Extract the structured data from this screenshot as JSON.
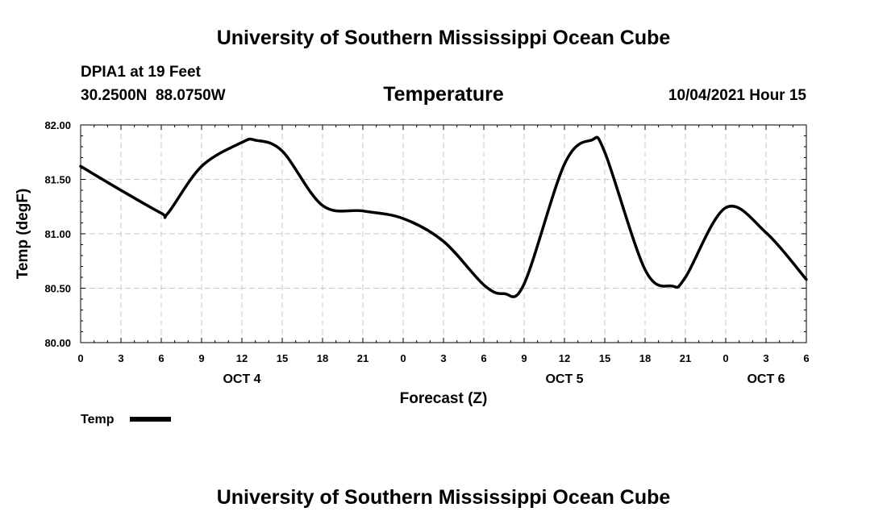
{
  "header": {
    "title": "University of Southern Mississippi Ocean Cube",
    "station": "DPIA1 at 19 Feet",
    "coords": "30.2500N  88.0750W",
    "datetime": "10/04/2021 Hour 15"
  },
  "footer": {
    "title": "University of Southern Mississippi Ocean Cube"
  },
  "legend": {
    "label": "Temp"
  },
  "colors": {
    "line": "#000000",
    "grid": "#c8c8c8"
  },
  "chart_data": {
    "type": "line",
    "title": "Temperature",
    "xlabel": "Forecast (Z)",
    "ylabel": "Temp (degF)",
    "ylim": [
      80.0,
      82.0
    ],
    "yticks": [
      "80.00",
      "80.50",
      "81.00",
      "81.50",
      "82.00"
    ],
    "xlim": [
      0,
      54
    ],
    "xticks": [
      "0",
      "3",
      "6",
      "9",
      "12",
      "15",
      "18",
      "21",
      "0",
      "3",
      "6",
      "9",
      "12",
      "15",
      "18",
      "21",
      "0",
      "3",
      "6"
    ],
    "date_labels": [
      {
        "text": "OCT 4",
        "hour": 12
      },
      {
        "text": "OCT 5",
        "hour": 36
      },
      {
        "text": "OCT 6",
        "hour": 51
      }
    ],
    "grid": true,
    "series": [
      {
        "name": "Temp",
        "x": [
          0,
          3,
          6,
          6.5,
          9,
          12,
          13,
          15,
          18,
          21,
          24,
          27,
          30,
          31.5,
          33,
          36,
          38,
          39,
          42,
          44,
          45,
          48,
          51,
          54
        ],
        "values": [
          81.62,
          81.4,
          81.19,
          81.19,
          81.62,
          81.84,
          81.86,
          81.76,
          81.26,
          81.21,
          81.14,
          80.93,
          80.53,
          80.45,
          80.54,
          81.64,
          81.86,
          81.75,
          80.67,
          80.52,
          80.6,
          81.24,
          81.01,
          80.58
        ]
      }
    ]
  }
}
